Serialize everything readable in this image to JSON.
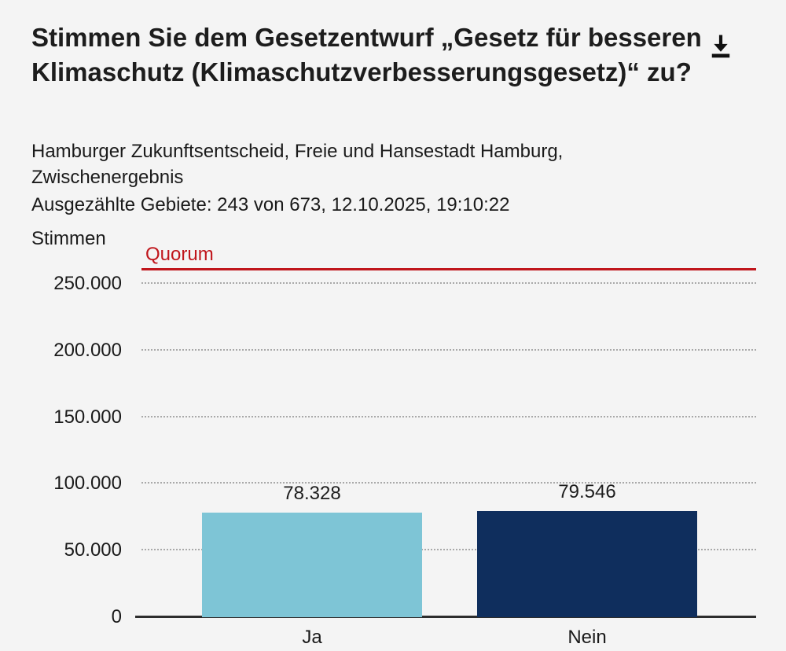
{
  "header": {
    "title": "Stimmen Sie dem Gesetzentwurf „Gesetz für besseren Klimaschutz (Klimaschutzverbesserungsgesetz)“ zu?",
    "subtitle_line1": "Hamburger Zukunftsentscheid, Freie und Hansestadt Hamburg,",
    "subtitle_line2": "Zwischenergebnis",
    "status_line": "Ausgezählte Gebiete: 243 von 673, 12.10.2025, 19:10:22",
    "download_icon": "download-icon"
  },
  "chart_data": {
    "type": "bar",
    "title": "Stimmen Sie dem Gesetzentwurf „Gesetz für besseren Klimaschutz (Klimaschutzverbesserungsgesetz)“ zu?",
    "ylabel": "Stimmen",
    "xlabel": "",
    "categories": [
      "Ja",
      "Nein"
    ],
    "values": [
      78328,
      79546
    ],
    "value_labels": [
      "78.328",
      "79.546"
    ],
    "bar_colors": [
      "#7ec5d6",
      "#0f2e5d"
    ],
    "yticks": [
      0,
      50000,
      100000,
      150000,
      200000,
      250000
    ],
    "ytick_labels": [
      "0",
      "50.000",
      "100.000",
      "150.000",
      "200.000",
      "250.000"
    ],
    "ylim": [
      0,
      285000
    ],
    "grid": "horizontal-dotted",
    "legend": "none",
    "quorum": {
      "label": "Quorum",
      "value": 260000,
      "color": "#c0161c"
    },
    "colors": {
      "axis": "#2d2d2d",
      "gridline": "#a9a9a9",
      "background": "#f4f4f4",
      "text": "#1a1a1a"
    }
  }
}
